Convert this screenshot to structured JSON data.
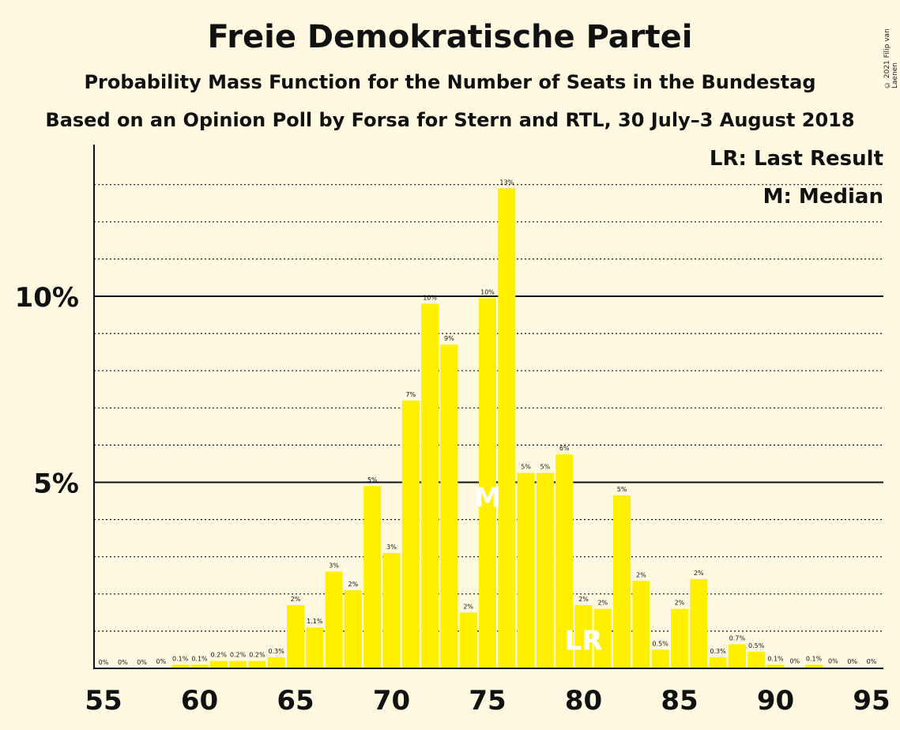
{
  "title": "Freie Demokratische Partei",
  "subtitle1": "Probability Mass Function for the Number of Seats in the Bundestag",
  "subtitle2": "Based on an Opinion Poll by Forsa for Stern and RTL, 30 July–3 August 2018",
  "copyright": "© 2021 Filip van Laenen",
  "colors": {
    "bar": "#fff000",
    "background": "#fff9e2",
    "text": "#111111"
  },
  "chart_data": {
    "type": "bar",
    "x": [
      55,
      56,
      57,
      58,
      59,
      60,
      61,
      62,
      63,
      64,
      65,
      66,
      67,
      68,
      69,
      70,
      71,
      72,
      73,
      74,
      75,
      76,
      77,
      78,
      79,
      80,
      81,
      82,
      83,
      84,
      85,
      86,
      87,
      88,
      89,
      90,
      91,
      92,
      93,
      94,
      95
    ],
    "values": [
      0,
      0,
      0,
      0.02,
      0.1,
      0.1,
      0.2,
      0.2,
      0.2,
      0.3,
      1.7,
      1.1,
      2.6,
      2.1,
      4.9,
      3.1,
      7.2,
      9.8,
      8.7,
      1.5,
      9.95,
      12.9,
      5.25,
      5.25,
      5.75,
      1.7,
      1.6,
      4.65,
      2.35,
      0.5,
      1.6,
      2.4,
      0.3,
      0.65,
      0.45,
      0.1,
      0.03,
      0.1,
      0.03,
      0.02,
      0.02
    ],
    "labels": [
      "0%",
      "0%",
      "0%",
      "0%",
      "0.1%",
      "0.1%",
      "0.2%",
      "0.2%",
      "0.2%",
      "0.3%",
      "2%",
      "1.1%",
      "3%",
      "2%",
      "5%",
      "3%",
      "7%",
      "10%",
      "9%",
      "2%",
      "10%",
      "13%",
      "5%",
      "5%",
      "6%",
      "2%",
      "2%",
      "5%",
      "2%",
      "0.5%",
      "2%",
      "2%",
      "0.3%",
      "0.7%",
      "0.5%",
      "0.1%",
      "0%",
      "0.1%",
      "0%",
      "0%",
      "0%"
    ],
    "xticks": [
      "55",
      "60",
      "65",
      "70",
      "75",
      "80",
      "85",
      "90",
      "95"
    ],
    "yticks": [
      "5%",
      "10%"
    ],
    "ylim": [
      0,
      14
    ],
    "median": 75,
    "median_label": "M",
    "last_result": 80,
    "last_result_label": "LR",
    "legend": [
      "LR: Last Result",
      "M: Median"
    ],
    "legend_position": "top-right"
  }
}
